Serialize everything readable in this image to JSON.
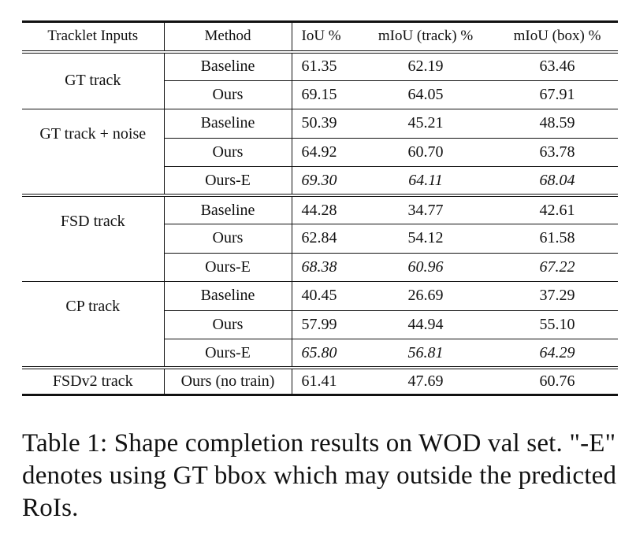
{
  "table": {
    "headers": {
      "inputs": "Tracklet Inputs",
      "method": "Method",
      "iou": "IoU %",
      "miou_track": "mIoU (track) %",
      "miou_box": "mIoU (box) %"
    },
    "groups": [
      {
        "label": "GT track",
        "rows": [
          {
            "method": "Baseline",
            "iou": "61.35",
            "miou_track": "62.19",
            "miou_box": "63.46"
          },
          {
            "method": "Ours",
            "iou": "69.15",
            "miou_track": "64.05",
            "miou_box": "67.91"
          }
        ]
      },
      {
        "label": "GT track + noise",
        "rows": [
          {
            "method": "Baseline",
            "iou": "50.39",
            "miou_track": "45.21",
            "miou_box": "48.59"
          },
          {
            "method": "Ours",
            "iou": "64.92",
            "miou_track": "60.70",
            "miou_box": "63.78"
          },
          {
            "method": "Ours-E",
            "iou": "69.30",
            "miou_track": "64.11",
            "miou_box": "68.04"
          }
        ]
      },
      {
        "label": "FSD track",
        "rows": [
          {
            "method": "Baseline",
            "iou": "44.28",
            "miou_track": "34.77",
            "miou_box": "42.61"
          },
          {
            "method": "Ours",
            "iou": "62.84",
            "miou_track": "54.12",
            "miou_box": "61.58"
          },
          {
            "method": "Ours-E",
            "iou": "68.38",
            "miou_track": "60.96",
            "miou_box": "67.22"
          }
        ]
      },
      {
        "label": "CP track",
        "rows": [
          {
            "method": "Baseline",
            "iou": "40.45",
            "miou_track": "26.69",
            "miou_box": "37.29"
          },
          {
            "method": "Ours",
            "iou": "57.99",
            "miou_track": "44.94",
            "miou_box": "55.10"
          },
          {
            "method": "Ours-E",
            "iou": "65.80",
            "miou_track": "56.81",
            "miou_box": "64.29"
          }
        ]
      },
      {
        "label": "FSDv2 track",
        "rows": [
          {
            "method": "Ours (no train)",
            "iou": "61.41",
            "miou_track": "47.69",
            "miou_box": "60.76"
          }
        ]
      }
    ]
  },
  "caption": "Table 1: Shape completion results on WOD val set. \"-E\" denotes using GT bbox which may outside the predicted RoIs."
}
